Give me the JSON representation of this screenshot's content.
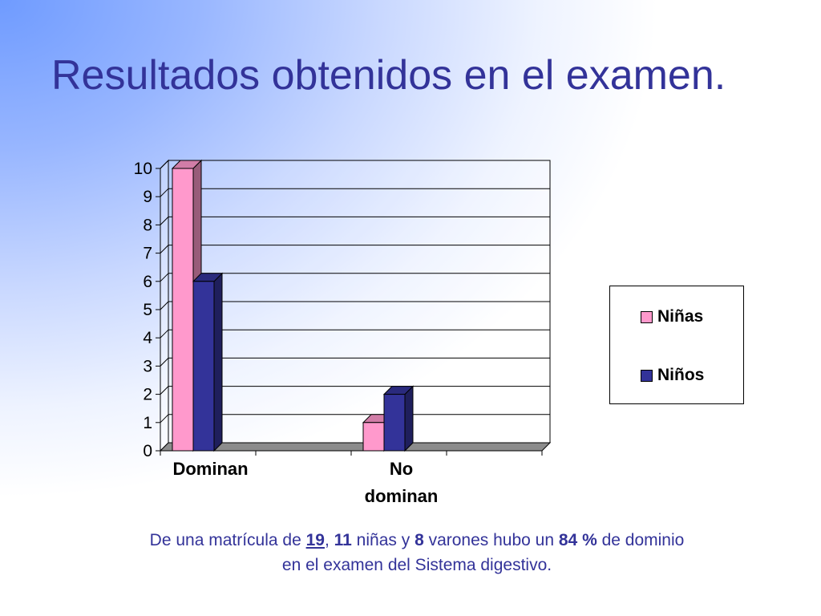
{
  "slide": {
    "title": "Resultados obtenidos en el examen."
  },
  "chart_data": {
    "type": "bar",
    "categories": [
      "Dominan",
      "No dominan"
    ],
    "category_lines": [
      [
        "Dominan"
      ],
      [
        "No",
        "dominan"
      ]
    ],
    "series": [
      {
        "name": "Niñas",
        "values": [
          10,
          1
        ],
        "color": "#ff99cc"
      },
      {
        "name": "Niños",
        "values": [
          6,
          2
        ],
        "color": "#333399"
      }
    ],
    "ylim": [
      0,
      10
    ],
    "yticks": [
      "0",
      "1",
      "2",
      "3",
      "4",
      "5",
      "6",
      "7",
      "8",
      "9",
      "10"
    ],
    "grid": true,
    "legend_position": "right",
    "style": "3d-clustered-column"
  },
  "legend": {
    "items": [
      {
        "label": "Niñas",
        "color": "#ff99cc"
      },
      {
        "label": "Niños",
        "color": "#333399"
      }
    ]
  },
  "caption": {
    "p1": "De una matrícula de ",
    "enrollment": "19",
    "p2": ", ",
    "girls": "11",
    "p3": " niñas y  ",
    "boys": "8",
    "p4": " varones hubo un ",
    "percent": "84 %",
    "p5": " de dominio",
    "line2": "en el examen del Sistema digestivo."
  }
}
